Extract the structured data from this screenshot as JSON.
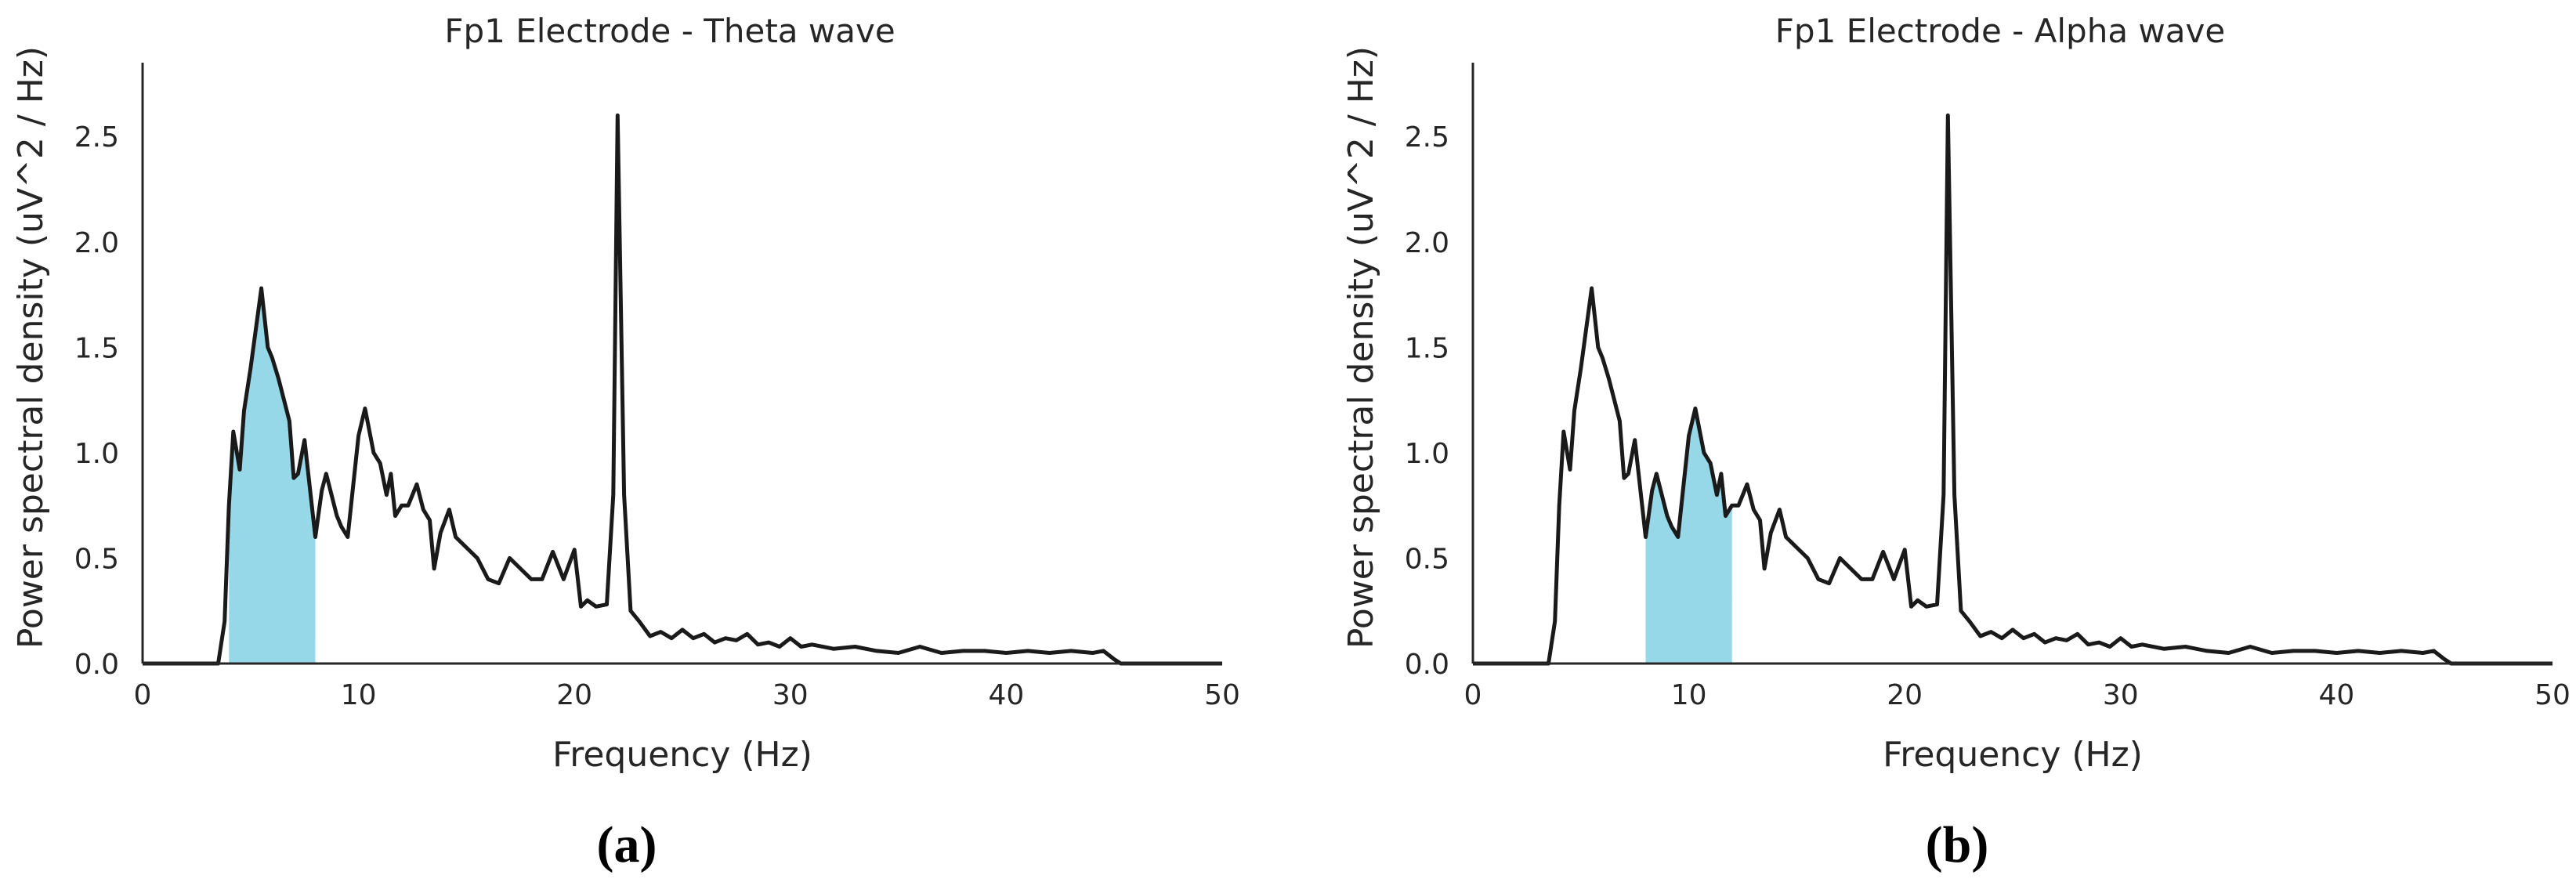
{
  "chart_data": [
    {
      "type": "line",
      "title": "Fp1 Electrode - Theta wave",
      "xlabel": "Frequency (Hz)",
      "ylabel": "Power spectral density (uV^2 / Hz)",
      "panel_label": "(a)",
      "xlim": [
        0,
        50
      ],
      "ylim": [
        0,
        2.85
      ],
      "xticks": [
        "0",
        "10",
        "20",
        "30",
        "40",
        "50"
      ],
      "yticks": [
        "0.0",
        "0.5",
        "1.0",
        "1.5",
        "2.0",
        "2.5"
      ],
      "line_color": "#1a1a1a",
      "fill_color": "#97d8e8",
      "band": [
        4,
        8
      ],
      "series": [
        {
          "x": [
            0,
            3.5,
            3.8,
            4.0,
            4.2,
            4.5,
            4.7,
            5.0,
            5.5,
            5.8,
            6.0,
            6.3,
            6.8,
            7.0,
            7.2,
            7.5,
            8.0,
            8.3,
            8.5,
            9.0,
            9.2,
            9.5,
            10.0,
            10.3,
            10.7,
            11.0,
            11.3,
            11.5,
            11.7,
            12.0,
            12.3,
            12.7,
            13.0,
            13.3,
            13.5,
            13.8,
            14.2,
            14.5,
            15.0,
            15.5,
            16.0,
            16.5,
            17.0,
            17.5,
            18.0,
            18.5,
            19.0,
            19.5,
            20.0,
            20.3,
            20.6,
            21.0,
            21.5,
            21.8,
            22.0,
            22.3,
            22.6,
            23.0,
            23.5,
            24.0,
            24.5,
            25.0,
            25.5,
            26.0,
            26.5,
            27.0,
            27.5,
            28.0,
            28.5,
            29.0,
            29.5,
            30.0,
            30.5,
            31.0,
            32.0,
            33.0,
            34.0,
            35.0,
            36.0,
            37.0,
            38.0,
            39.0,
            40.0,
            41.0,
            42.0,
            43.0,
            44.0,
            44.5,
            45.0,
            45.3,
            50
          ],
          "y": [
            0.0,
            0.0,
            0.2,
            0.75,
            1.1,
            0.92,
            1.2,
            1.4,
            1.78,
            1.5,
            1.45,
            1.35,
            1.15,
            0.88,
            0.9,
            1.06,
            0.6,
            0.82,
            0.9,
            0.7,
            0.65,
            0.6,
            1.08,
            1.21,
            1.0,
            0.95,
            0.8,
            0.9,
            0.7,
            0.75,
            0.75,
            0.85,
            0.73,
            0.68,
            0.45,
            0.62,
            0.73,
            0.6,
            0.55,
            0.5,
            0.4,
            0.38,
            0.5,
            0.45,
            0.4,
            0.4,
            0.53,
            0.4,
            0.54,
            0.27,
            0.3,
            0.27,
            0.28,
            0.8,
            2.6,
            0.8,
            0.25,
            0.2,
            0.13,
            0.15,
            0.12,
            0.16,
            0.12,
            0.14,
            0.1,
            0.12,
            0.11,
            0.14,
            0.09,
            0.1,
            0.08,
            0.12,
            0.08,
            0.09,
            0.07,
            0.08,
            0.06,
            0.05,
            0.08,
            0.05,
            0.06,
            0.06,
            0.05,
            0.06,
            0.05,
            0.06,
            0.05,
            0.06,
            0.02,
            0.0,
            0.0
          ]
        }
      ]
    },
    {
      "type": "line",
      "title": "Fp1 Electrode - Alpha wave",
      "xlabel": "Frequency (Hz)",
      "ylabel": "Power spectral density (uV^2 / Hz)",
      "panel_label": "(b)",
      "xlim": [
        0,
        50
      ],
      "ylim": [
        0,
        2.85
      ],
      "xticks": [
        "0",
        "10",
        "20",
        "30",
        "40",
        "50"
      ],
      "yticks": [
        "0.0",
        "0.5",
        "1.0",
        "1.5",
        "2.0",
        "2.5"
      ],
      "line_color": "#1a1a1a",
      "fill_color": "#97d8e8",
      "band": [
        8,
        12
      ],
      "series": [
        {
          "x": [
            0,
            3.5,
            3.8,
            4.0,
            4.2,
            4.5,
            4.7,
            5.0,
            5.5,
            5.8,
            6.0,
            6.3,
            6.8,
            7.0,
            7.2,
            7.5,
            8.0,
            8.3,
            8.5,
            9.0,
            9.2,
            9.5,
            10.0,
            10.3,
            10.7,
            11.0,
            11.3,
            11.5,
            11.7,
            12.0,
            12.3,
            12.7,
            13.0,
            13.3,
            13.5,
            13.8,
            14.2,
            14.5,
            15.0,
            15.5,
            16.0,
            16.5,
            17.0,
            17.5,
            18.0,
            18.5,
            19.0,
            19.5,
            20.0,
            20.3,
            20.6,
            21.0,
            21.5,
            21.8,
            22.0,
            22.3,
            22.6,
            23.0,
            23.5,
            24.0,
            24.5,
            25.0,
            25.5,
            26.0,
            26.5,
            27.0,
            27.5,
            28.0,
            28.5,
            29.0,
            29.5,
            30.0,
            30.5,
            31.0,
            32.0,
            33.0,
            34.0,
            35.0,
            36.0,
            37.0,
            38.0,
            39.0,
            40.0,
            41.0,
            42.0,
            43.0,
            44.0,
            44.5,
            45.0,
            45.3,
            50
          ],
          "y": [
            0.0,
            0.0,
            0.2,
            0.75,
            1.1,
            0.92,
            1.2,
            1.4,
            1.78,
            1.5,
            1.45,
            1.35,
            1.15,
            0.88,
            0.9,
            1.06,
            0.6,
            0.82,
            0.9,
            0.7,
            0.65,
            0.6,
            1.08,
            1.21,
            1.0,
            0.95,
            0.8,
            0.9,
            0.7,
            0.75,
            0.75,
            0.85,
            0.73,
            0.68,
            0.45,
            0.62,
            0.73,
            0.6,
            0.55,
            0.5,
            0.4,
            0.38,
            0.5,
            0.45,
            0.4,
            0.4,
            0.53,
            0.4,
            0.54,
            0.27,
            0.3,
            0.27,
            0.28,
            0.8,
            2.6,
            0.8,
            0.25,
            0.2,
            0.13,
            0.15,
            0.12,
            0.16,
            0.12,
            0.14,
            0.1,
            0.12,
            0.11,
            0.14,
            0.09,
            0.1,
            0.08,
            0.12,
            0.08,
            0.09,
            0.07,
            0.08,
            0.06,
            0.05,
            0.08,
            0.05,
            0.06,
            0.06,
            0.05,
            0.06,
            0.05,
            0.06,
            0.05,
            0.06,
            0.02,
            0.0,
            0.0
          ]
        }
      ]
    }
  ]
}
